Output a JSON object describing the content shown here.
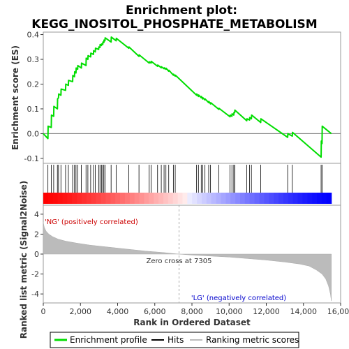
{
  "chart_data": {
    "type": "line",
    "title_line1": "Enrichment plot:",
    "title_line2": "KEGG_INOSITOL_PHOSPHATE_METABOLISM",
    "xlabel": "Rank in Ordered Dataset",
    "ylabel_top": "Enrichment score (ES)",
    "ylabel_bottom": "Ranked list metric (Signal2Noise)",
    "xlim": [
      0,
      16000
    ],
    "ylim_es": [
      -0.12,
      0.41
    ],
    "ylim_metric": [
      -4.9,
      4.9
    ],
    "x_ticks": [
      0,
      2000,
      4000,
      6000,
      8000,
      10000,
      12000,
      14000,
      16000
    ],
    "x_tick_labels": [
      "0",
      "2,000",
      "4,000",
      "6,000",
      "8,000",
      "10,000",
      "12,000",
      "14,000",
      "16,000"
    ],
    "es_ticks": [
      -0.1,
      0.0,
      0.1,
      0.2,
      0.3,
      0.4
    ],
    "es_tick_labels": [
      "-0.1",
      "0.0",
      "0.1",
      "0.2",
      "0.3",
      "0.4"
    ],
    "metric_ticks": [
      -4,
      -2,
      0,
      2,
      4
    ],
    "metric_tick_labels": [
      "-4",
      "-2",
      "0",
      "2",
      "4"
    ],
    "n_genes": 15500,
    "zero_cross": 7305,
    "zero_cross_label": "Zero cross at 7305",
    "pos_label": "'NG' (positively correlated)",
    "neg_label": "'LG' (negatively correlated)",
    "legend": [
      {
        "label": "Enrichment profile",
        "color": "#00dd00"
      },
      {
        "label": "Hits",
        "color": "#000000"
      },
      {
        "label": "Ranking metric scores",
        "color": "#bbbbbb"
      }
    ],
    "colors": {
      "es_line": "#00dd00",
      "hit": "#000000",
      "metric_fill": "#bbbbbb",
      "zero_line": "#aaaaaa",
      "frame": "#999999",
      "bar_pos": "#ff0000",
      "bar_neg": "#0000ff"
    },
    "hits": [
      250,
      430,
      560,
      760,
      820,
      950,
      1200,
      1350,
      1580,
      1680,
      1760,
      1850,
      2050,
      2300,
      2400,
      2550,
      2700,
      2800,
      2980,
      3050,
      3130,
      3200,
      3260,
      3320,
      3650,
      3920,
      4600,
      5150,
      5700,
      5800,
      6150,
      6350,
      6500,
      6600,
      6750,
      7000,
      7100,
      8250,
      8350,
      8500,
      8580,
      8700,
      8900,
      9000,
      9450,
      10050,
      10150,
      10250,
      10300,
      10950,
      11100,
      11200,
      11700,
      13150,
      13400,
      14950,
      15000
    ],
    "es_profile": {
      "x": [
        0,
        250,
        260,
        430,
        440,
        560,
        570,
        760,
        770,
        820,
        830,
        950,
        960,
        1200,
        1210,
        1350,
        1360,
        1580,
        1590,
        1680,
        1690,
        1760,
        1770,
        1850,
        1860,
        2050,
        2060,
        2300,
        2310,
        2400,
        2410,
        2550,
        2560,
        2700,
        2710,
        2800,
        2810,
        2980,
        2990,
        3050,
        3060,
        3130,
        3140,
        3200,
        3210,
        3260,
        3270,
        3320,
        3330,
        3650,
        3660,
        3920,
        3930,
        4600,
        4610,
        5150,
        5160,
        5700,
        5710,
        5800,
        5810,
        6150,
        6160,
        6350,
        6360,
        6500,
        6510,
        6600,
        6610,
        6750,
        6760,
        7000,
        7010,
        7100,
        7110,
        8250,
        8260,
        8350,
        8360,
        8500,
        8510,
        8580,
        8590,
        8700,
        8710,
        8900,
        8910,
        9000,
        9010,
        9450,
        9460,
        10050,
        10060,
        10150,
        10160,
        10250,
        10260,
        10300,
        10310,
        10950,
        10960,
        11100,
        11110,
        11200,
        11210,
        11700,
        11710,
        13150,
        13160,
        13400,
        13410,
        14950,
        14960,
        15000,
        15010,
        15500
      ],
      "y": [
        0.0,
        -0.02,
        0.03,
        0.025,
        0.075,
        0.07,
        0.11,
        0.1,
        0.14,
        0.145,
        0.16,
        0.155,
        0.18,
        0.175,
        0.2,
        0.195,
        0.215,
        0.21,
        0.235,
        0.23,
        0.25,
        0.245,
        0.265,
        0.26,
        0.275,
        0.265,
        0.285,
        0.275,
        0.305,
        0.3,
        0.315,
        0.31,
        0.325,
        0.32,
        0.335,
        0.33,
        0.345,
        0.34,
        0.35,
        0.348,
        0.36,
        0.356,
        0.362,
        0.36,
        0.37,
        0.368,
        0.378,
        0.375,
        0.387,
        0.37,
        0.39,
        0.375,
        0.385,
        0.345,
        0.35,
        0.312,
        0.318,
        0.285,
        0.29,
        0.285,
        0.292,
        0.272,
        0.277,
        0.266,
        0.27,
        0.262,
        0.266,
        0.26,
        0.264,
        0.252,
        0.256,
        0.236,
        0.24,
        0.232,
        0.236,
        0.155,
        0.16,
        0.15,
        0.156,
        0.145,
        0.15,
        0.14,
        0.145,
        0.136,
        0.14,
        0.125,
        0.13,
        0.12,
        0.125,
        0.098,
        0.102,
        0.068,
        0.075,
        0.07,
        0.08,
        0.075,
        0.085,
        0.085,
        0.095,
        0.052,
        0.06,
        0.055,
        0.065,
        0.06,
        0.075,
        0.045,
        0.06,
        -0.015,
        0.0,
        -0.01,
        0.005,
        -0.095,
        -0.03,
        -0.04,
        0.03,
        0.0
      ]
    },
    "metric_profile": {
      "x": [
        0,
        50,
        150,
        300,
        500,
        800,
        1200,
        1800,
        2500,
        3500,
        4500,
        5500,
        6500,
        7000,
        7305,
        8000,
        9000,
        10000,
        11000,
        12000,
        13000,
        13800,
        14300,
        14700,
        15000,
        15200,
        15350,
        15450,
        15500
      ],
      "y": [
        3.2,
        2.7,
        2.3,
        2.0,
        1.75,
        1.5,
        1.3,
        1.1,
        0.9,
        0.7,
        0.5,
        0.3,
        0.15,
        0.05,
        0.0,
        -0.1,
        -0.2,
        -0.3,
        -0.45,
        -0.6,
        -0.8,
        -1.0,
        -1.2,
        -1.6,
        -2.0,
        -2.5,
        -3.2,
        -4.0,
        -4.7
      ]
    }
  }
}
